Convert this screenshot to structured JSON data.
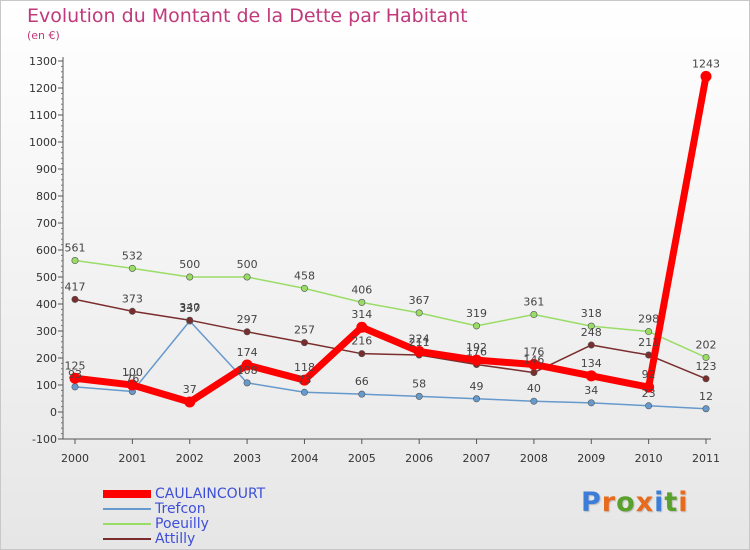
{
  "chart_data": {
    "type": "line",
    "title": "Evolution du Montant de la Dette par Habitant",
    "subtitle": "(en €)",
    "xlabel": "",
    "ylabel": "",
    "x": [
      "2000",
      "2001",
      "2002",
      "2003",
      "2004",
      "2005",
      "2006",
      "2007",
      "2008",
      "2009",
      "2010",
      "2011"
    ],
    "y_ticks": [
      "-100",
      "0",
      "100",
      "200",
      "300",
      "400",
      "500",
      "600",
      "700",
      "800",
      "900",
      "1000",
      "1100",
      "1200",
      "1300"
    ],
    "ylim": [
      -100,
      1300
    ],
    "grid": false,
    "legend_position": "bottom-left",
    "series": [
      {
        "name": "CAULAINCOURT",
        "color": "#ff0000",
        "values": [
          125,
          100,
          37,
          174,
          118,
          314,
          224,
          192,
          176,
          134,
          92,
          1243
        ],
        "labels": [
          "125",
          "100",
          "37",
          "174",
          "118",
          "314",
          "224",
          "192",
          "176",
          "134",
          "92",
          "1243"
        ]
      },
      {
        "name": "Trefcon",
        "color": "#6699cc",
        "values": [
          93,
          76,
          337,
          108,
          73,
          66,
          58,
          49,
          40,
          34,
          23,
          12
        ],
        "labels": [
          "93",
          "76",
          "337",
          "108",
          "73",
          "66",
          "58",
          "49",
          "40",
          "34",
          "23",
          "12"
        ]
      },
      {
        "name": "Poeuilly",
        "color": "#99dd66",
        "values": [
          561,
          532,
          500,
          500,
          458,
          406,
          367,
          319,
          361,
          318,
          298,
          202
        ],
        "labels": [
          "561",
          "532",
          "500",
          "500",
          "458",
          "406",
          "367",
          "319",
          "361",
          "318",
          "298",
          "202"
        ]
      },
      {
        "name": "Attilly",
        "color": "#7a2d2d",
        "values": [
          417,
          373,
          340,
          297,
          257,
          216,
          211,
          176,
          146,
          248,
          211,
          123
        ],
        "labels": [
          "417",
          "373",
          "340",
          "297",
          "257",
          "216",
          "211",
          "176",
          "146",
          "248",
          "211",
          "123"
        ]
      }
    ]
  },
  "legend": {
    "items": [
      {
        "label": "CAULAINCOURT"
      },
      {
        "label": "Trefcon"
      },
      {
        "label": "Poeuilly"
      },
      {
        "label": "Attilly"
      }
    ]
  },
  "brand": {
    "text": "Proxiti",
    "letter_colors": [
      "#3b7dd8",
      "#e86a1c",
      "#5aa02c",
      "#e86a1c",
      "#3b7dd8",
      "#5aa02c",
      "#e86a1c"
    ]
  }
}
